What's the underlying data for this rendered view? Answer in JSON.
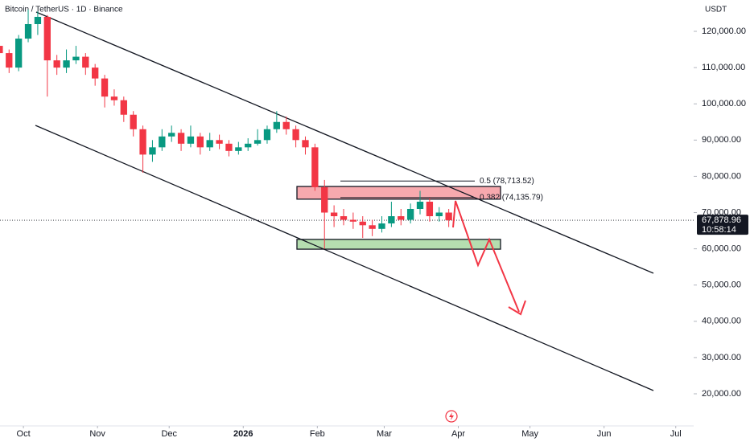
{
  "chart_data": {
    "type": "candlestick",
    "title": "Bitcoin / TetherUS · 1D · Binance",
    "currency": "USDT",
    "x": [
      -10,
      -6,
      -2,
      2,
      6,
      10,
      14,
      18,
      22,
      26,
      30,
      34,
      38,
      42,
      46,
      50,
      54,
      58,
      62,
      66,
      70,
      74,
      78,
      82,
      86,
      90,
      94,
      98,
      102,
      106,
      110,
      114,
      118,
      122,
      126,
      130,
      134,
      138,
      142,
      146,
      150,
      154,
      158,
      162,
      166,
      170,
      174,
      178
    ],
    "open": [
      116000,
      114000,
      110000,
      118000,
      122000,
      124000,
      112000,
      110000,
      112000,
      113000,
      110000,
      107000,
      102000,
      101000,
      97000,
      93000,
      86000,
      88000,
      91000,
      92000,
      89000,
      91000,
      88000,
      90000,
      89000,
      87000,
      88000,
      89000,
      90000,
      93000,
      95000,
      93000,
      90000,
      88000,
      77000,
      70000,
      69000,
      68000,
      67500,
      66500,
      65500,
      67000,
      69000,
      68000,
      71000,
      73000,
      69000,
      70000
    ],
    "high": [
      117500,
      115000,
      119000,
      126000,
      125500,
      124500,
      113500,
      115000,
      116000,
      114000,
      111000,
      108000,
      104000,
      102000,
      98000,
      94000,
      90000,
      93000,
      94000,
      93000,
      94000,
      92000,
      92000,
      91500,
      90000,
      89500,
      90500,
      93000,
      94000,
      98000,
      96500,
      94000,
      91000,
      89000,
      79000,
      72000,
      71000,
      70000,
      69000,
      68000,
      69000,
      73000,
      71000,
      72500,
      76000,
      74000,
      71500,
      71000
    ],
    "low": [
      112000,
      108500,
      109000,
      117000,
      119000,
      102000,
      108000,
      108500,
      111000,
      108000,
      105000,
      99000,
      99500,
      95000,
      91000,
      81000,
      84000,
      87000,
      89500,
      87000,
      88000,
      86000,
      87000,
      87500,
      85500,
      86000,
      87000,
      88500,
      89000,
      92000,
      91500,
      88000,
      86000,
      76000,
      60000,
      66000,
      66500,
      65500,
      63000,
      63500,
      64500,
      66000,
      66500,
      67000,
      69500,
      67500,
      67500,
      66000
    ],
    "close": [
      114000,
      110000,
      118000,
      122000,
      124000,
      112000,
      110000,
      112000,
      113000,
      110000,
      107000,
      102000,
      101000,
      97000,
      93000,
      86000,
      88000,
      91000,
      92000,
      89000,
      91000,
      88000,
      90000,
      89000,
      87000,
      88000,
      89000,
      90000,
      93000,
      95000,
      93000,
      90000,
      88000,
      77000,
      70000,
      69000,
      68000,
      67500,
      66500,
      65500,
      67000,
      69000,
      68000,
      71000,
      73000,
      69000,
      70000,
      67878.96
    ],
    "up_color": "#089981",
    "down_color": "#f23645",
    "xlim": [
      -9.8,
      280.5
    ],
    "xticks": [
      {
        "value": 0,
        "label": "Oct"
      },
      {
        "value": 31,
        "label": "Nov"
      },
      {
        "value": 61,
        "label": "Dec"
      },
      {
        "value": 92,
        "label": "2026"
      },
      {
        "value": 123,
        "label": "Feb"
      },
      {
        "value": 151,
        "label": "Mar"
      },
      {
        "value": 182,
        "label": "Apr"
      },
      {
        "value": 212,
        "label": "May"
      },
      {
        "value": 243,
        "label": "Jun"
      },
      {
        "value": 273,
        "label": "Jul"
      }
    ],
    "ylim": [
      13350,
      128650
    ],
    "yticks": [
      {
        "value": 20000,
        "label": "20,000.00"
      },
      {
        "value": 30000,
        "label": "30,000.00"
      },
      {
        "value": 40000,
        "label": "40,000.00"
      },
      {
        "value": 50000,
        "label": "50,000.00"
      },
      {
        "value": 60000,
        "label": "60,000.00"
      },
      {
        "value": 70000,
        "label": "70,000.00"
      },
      {
        "value": 80000,
        "label": "80,000.00"
      },
      {
        "value": 90000,
        "label": "90,000.00"
      },
      {
        "value": 100000,
        "label": "100,000.00"
      },
      {
        "value": 110000,
        "label": "110,000.00"
      },
      {
        "value": 120000,
        "label": "120,000.00"
      }
    ],
    "price_line": {
      "value": 67878.96,
      "label": "67,878.96"
    },
    "countdown": "10:58:14",
    "fib_levels": [
      {
        "value": 78713.52,
        "label": "0.5 (78,713.52)"
      },
      {
        "value": 74135.79,
        "label": "0.382 (74,135.79)"
      }
    ],
    "zones": [
      {
        "top": 77200,
        "bottom": 73700,
        "color": "#f7a9ae"
      },
      {
        "top": 62600,
        "bottom": 59900,
        "color": "#b5deb0"
      }
    ]
  }
}
